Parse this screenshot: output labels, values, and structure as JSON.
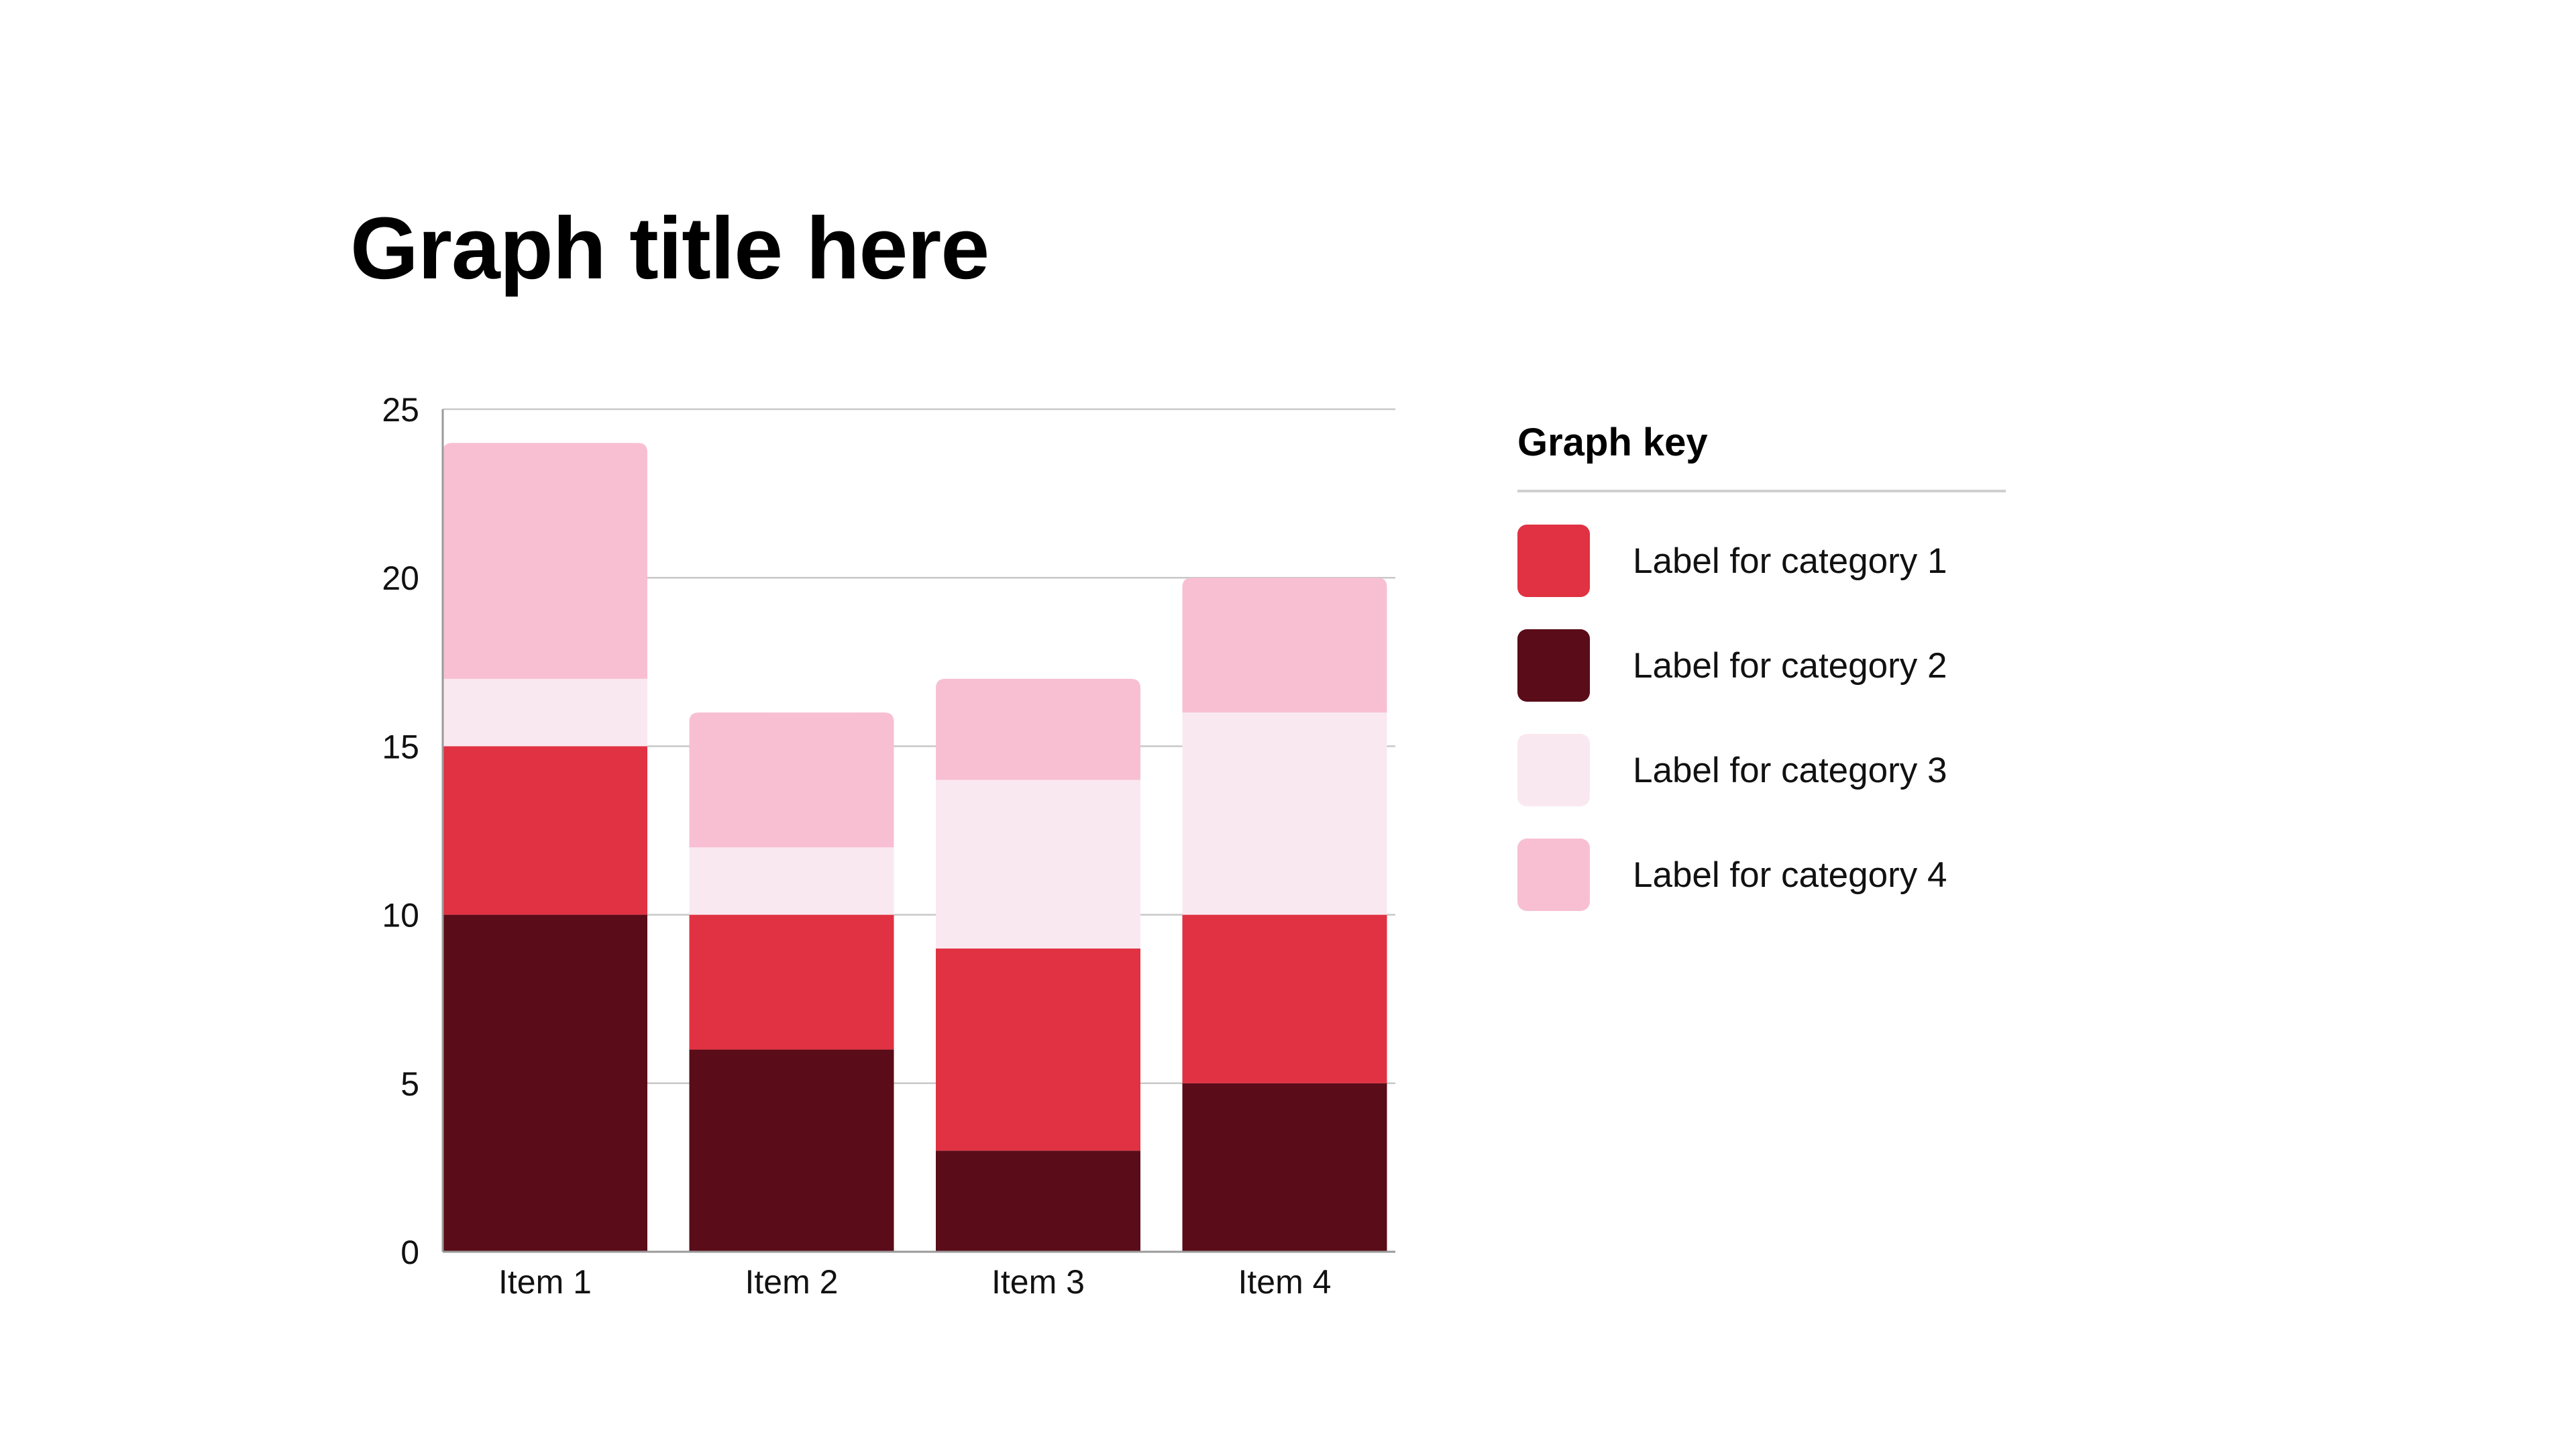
{
  "chart_data": {
    "type": "bar",
    "stacked": true,
    "title": "Graph title here",
    "xlabel": "",
    "ylabel": "",
    "ylim": [
      0,
      25
    ],
    "yticks": [
      0,
      5,
      10,
      15,
      20,
      25
    ],
    "grid": true,
    "legend_title": "Graph key",
    "legend_position": "right",
    "categories": [
      "Item 1",
      "Item 2",
      "Item 3",
      "Item 4"
    ],
    "series": [
      {
        "name": "Label for category 2",
        "color": "#5a0c18",
        "values": [
          10,
          6,
          3,
          5
        ]
      },
      {
        "name": "Label for category 1",
        "color": "#e03242",
        "values": [
          5,
          4,
          6,
          5
        ]
      },
      {
        "name": "Label for category 3",
        "color": "#fae8f0",
        "values": [
          2,
          2,
          5,
          6
        ]
      },
      {
        "name": "Label for category 4",
        "color": "#f8bfd3",
        "values": [
          7,
          4,
          3,
          4
        ]
      }
    ]
  },
  "legend": {
    "title": "Graph key",
    "items": [
      {
        "label": "Label for category 1",
        "color": "#e03242"
      },
      {
        "label": "Label for category 2",
        "color": "#5a0c18"
      },
      {
        "label": "Label for category 3",
        "color": "#fae8f0"
      },
      {
        "label": "Label for category 4",
        "color": "#f8bfd3"
      }
    ]
  }
}
